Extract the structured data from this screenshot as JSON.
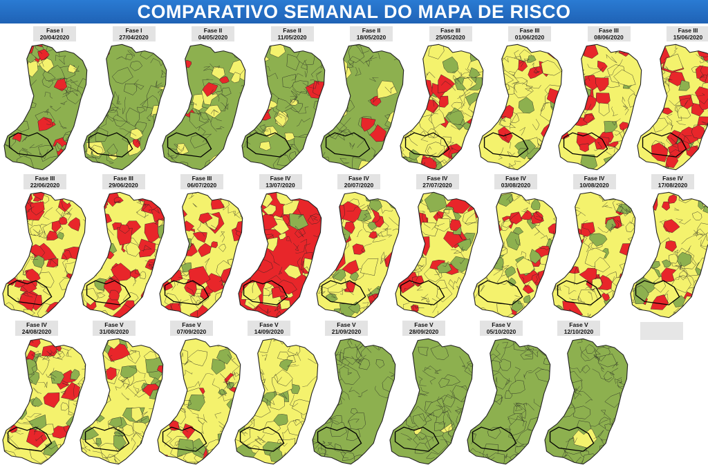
{
  "title": "COMPARATIVO SEMANAL DO MAPA DE RISCO",
  "colors": {
    "title_bar": "#1f62b5",
    "baixo": "#8db04f",
    "moderado": "#f4f26d",
    "alto": "#e8262a",
    "border": "#222222",
    "label_bg": "#e3e3e3"
  },
  "maps": [
    {
      "phase": "Fase I",
      "date": "20/04/2020",
      "risk": {
        "baixo": 0.84,
        "moderado": 0.1,
        "alto": 0.06
      }
    },
    {
      "phase": "Fase I",
      "date": "27/04/2020",
      "risk": {
        "baixo": 0.8,
        "moderado": 0.12,
        "alto": 0.08
      }
    },
    {
      "phase": "Fase II",
      "date": "04/05/2020",
      "risk": {
        "baixo": 0.78,
        "moderado": 0.13,
        "alto": 0.09
      }
    },
    {
      "phase": "Fase II",
      "date": "11/05/2020",
      "risk": {
        "baixo": 0.72,
        "moderado": 0.2,
        "alto": 0.08
      }
    },
    {
      "phase": "Fase II",
      "date": "18/05/2020",
      "risk": {
        "baixo": 0.74,
        "moderado": 0.14,
        "alto": 0.12
      }
    },
    {
      "phase": "Fase III",
      "date": "25/05/2020",
      "risk": {
        "baixo": 0.2,
        "moderado": 0.66,
        "alto": 0.14
      }
    },
    {
      "phase": "Fase III",
      "date": "01/06/2020",
      "risk": {
        "baixo": 0.12,
        "moderado": 0.74,
        "alto": 0.14
      }
    },
    {
      "phase": "Fase III",
      "date": "08/06/2020",
      "risk": {
        "baixo": 0.08,
        "moderado": 0.46,
        "alto": 0.46
      }
    },
    {
      "phase": "Fase III",
      "date": "15/06/2020",
      "risk": {
        "baixo": 0.06,
        "moderado": 0.5,
        "alto": 0.44
      }
    },
    {
      "phase": "Fase III",
      "date": "22/06/2020",
      "risk": {
        "baixo": 0.05,
        "moderado": 0.5,
        "alto": 0.45
      }
    },
    {
      "phase": "Fase III",
      "date": "29/06/2020",
      "risk": {
        "baixo": 0.04,
        "moderado": 0.52,
        "alto": 0.44
      }
    },
    {
      "phase": "Fase III",
      "date": "06/07/2020",
      "risk": {
        "baixo": 0.04,
        "moderado": 0.5,
        "alto": 0.46
      }
    },
    {
      "phase": "Fase IV",
      "date": "13/07/2020",
      "risk": {
        "baixo": 0.03,
        "moderado": 0.47,
        "alto": 0.5
      }
    },
    {
      "phase": "Fase IV",
      "date": "20/07/2020",
      "risk": {
        "baixo": 0.2,
        "moderado": 0.5,
        "alto": 0.3
      }
    },
    {
      "phase": "Fase IV",
      "date": "27/07/2020",
      "risk": {
        "baixo": 0.22,
        "moderado": 0.54,
        "alto": 0.24
      }
    },
    {
      "phase": "Fase IV",
      "date": "03/08/2020",
      "risk": {
        "baixo": 0.26,
        "moderado": 0.56,
        "alto": 0.18
      }
    },
    {
      "phase": "Fase IV",
      "date": "10/08/2020",
      "risk": {
        "baixo": 0.2,
        "moderado": 0.62,
        "alto": 0.18
      }
    },
    {
      "phase": "Fase IV",
      "date": "17/08/2020",
      "risk": {
        "baixo": 0.28,
        "moderado": 0.56,
        "alto": 0.16
      }
    },
    {
      "phase": "Fase IV",
      "date": "24/08/2020",
      "risk": {
        "baixo": 0.28,
        "moderado": 0.5,
        "alto": 0.22
      }
    },
    {
      "phase": "Fase V",
      "date": "31/08/2020",
      "risk": {
        "baixo": 0.3,
        "moderado": 0.62,
        "alto": 0.08
      }
    },
    {
      "phase": "Fase V",
      "date": "07/09/2020",
      "risk": {
        "baixo": 0.3,
        "moderado": 0.62,
        "alto": 0.08
      }
    },
    {
      "phase": "Fase V",
      "date": "14/09/2020",
      "risk": {
        "baixo": 0.24,
        "moderado": 0.76,
        "alto": 0.0
      }
    },
    {
      "phase": "Fase V",
      "date": "21/09/2020",
      "risk": {
        "baixo": 0.97,
        "moderado": 0.03,
        "alto": 0.0
      }
    },
    {
      "phase": "Fase V",
      "date": "28/09/2020",
      "risk": {
        "baixo": 0.96,
        "moderado": 0.04,
        "alto": 0.0
      }
    },
    {
      "phase": "Fase V",
      "date": "05/10/2020",
      "risk": {
        "baixo": 0.98,
        "moderado": 0.02,
        "alto": 0.0
      }
    },
    {
      "phase": "Fase V",
      "date": "12/10/2020",
      "risk": {
        "baixo": 0.97,
        "moderado": 0.03,
        "alto": 0.0
      }
    }
  ]
}
